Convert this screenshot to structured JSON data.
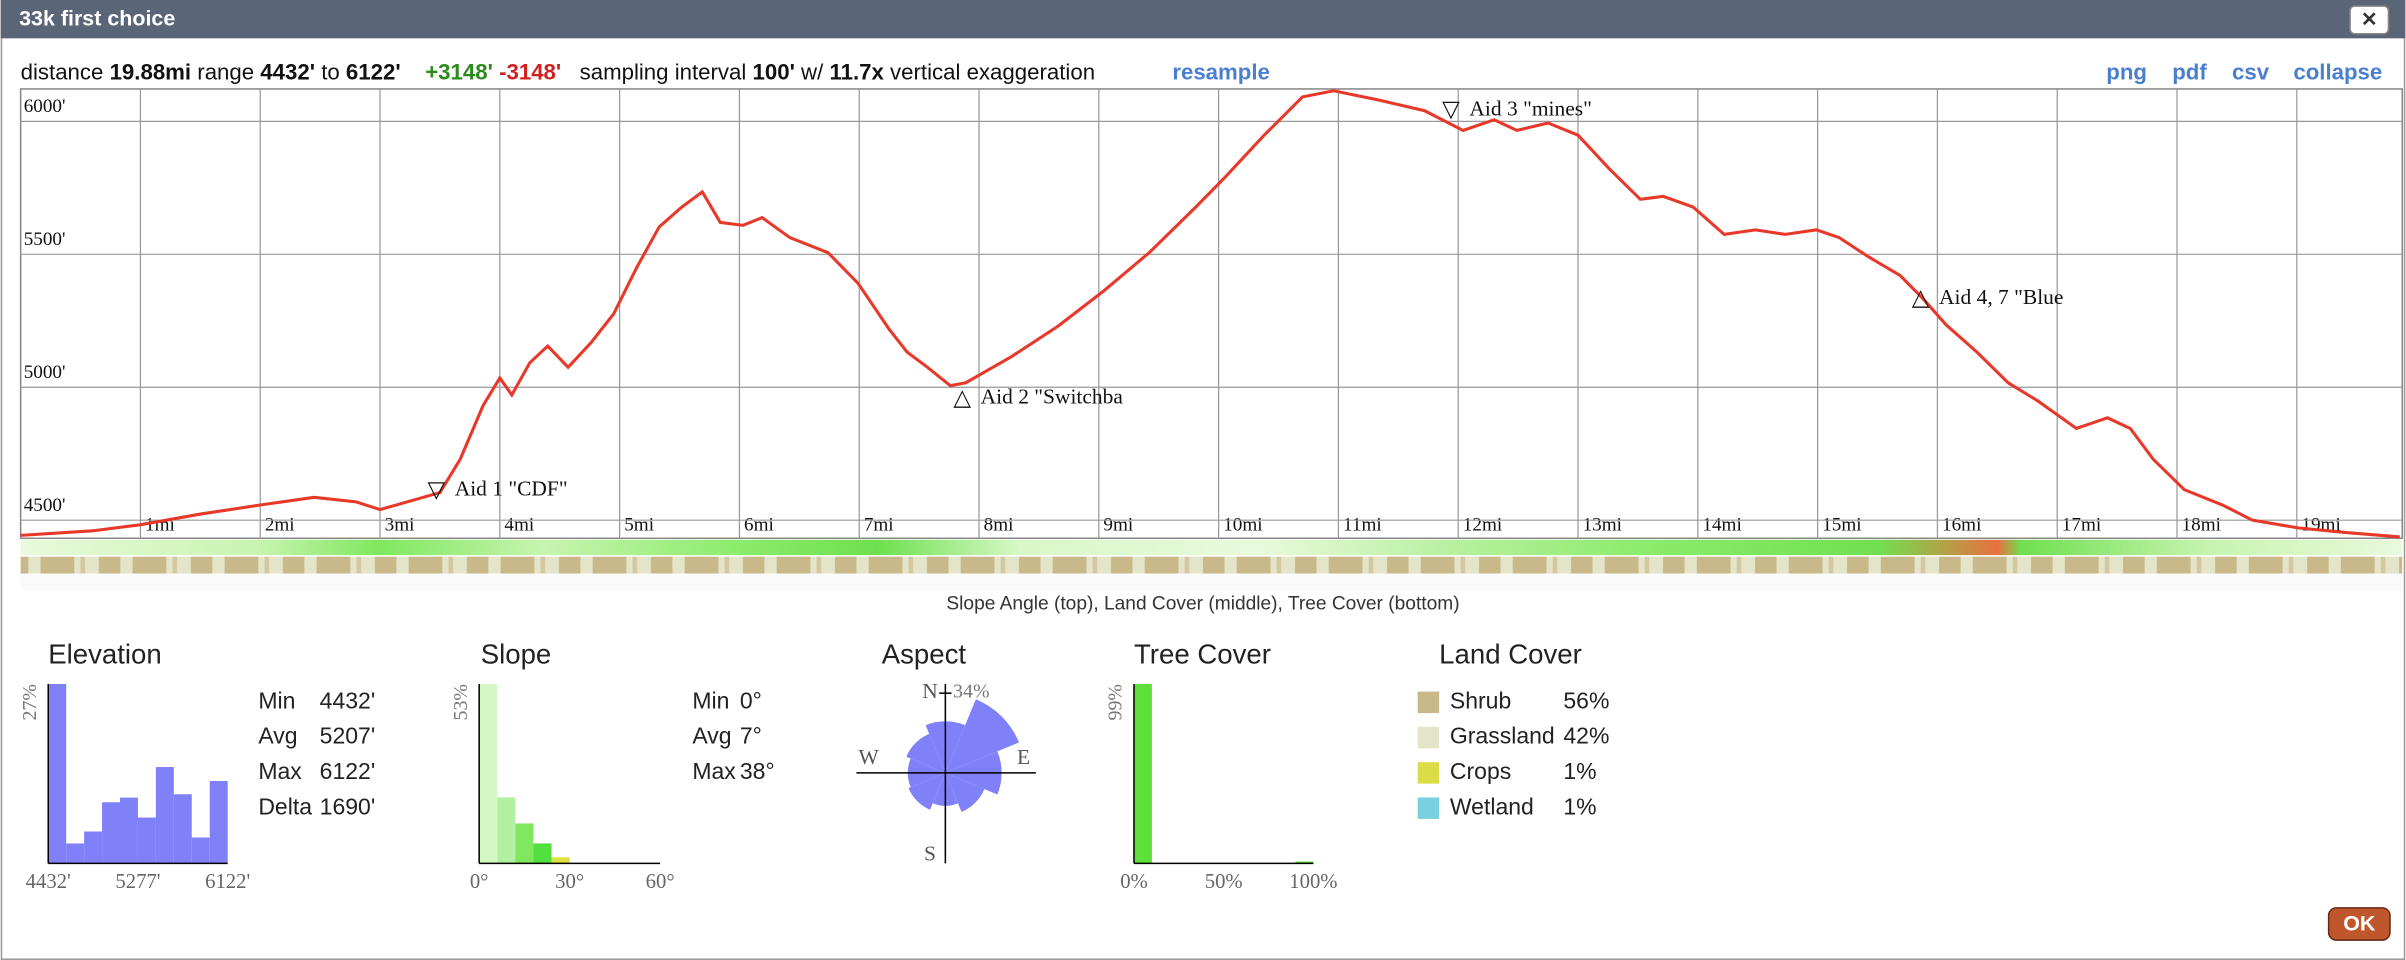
{
  "window": {
    "title": "33k first choice",
    "close": "✕"
  },
  "summary": {
    "distance_label": "distance",
    "distance": "19.88mi",
    "range_label": "range",
    "range_min": "4432'",
    "to": "to",
    "range_max": "6122'",
    "gain": "+3148'",
    "loss": "-3148'",
    "interval_label": "sampling interval",
    "interval": "100'",
    "with": "w/",
    "exaggeration": "11.7x",
    "exaggeration_label": "vertical exaggeration"
  },
  "links": {
    "resample": "resample",
    "png": "png",
    "pdf": "pdf",
    "csv": "csv",
    "collapse": "collapse"
  },
  "chart_data": {
    "type": "line",
    "x": [
      0,
      0.6,
      1,
      1.5,
      2,
      2.45,
      2.8,
      3,
      3.5,
      3.67,
      3.86,
      4,
      4.1,
      4.25,
      4.4,
      4.57,
      4.76,
      4.95,
      5.14,
      5.33,
      5.52,
      5.69,
      5.84,
      6.03,
      6.19,
      6.42,
      6.74,
      6.99,
      7.25,
      7.4,
      7.57,
      7.76,
      7.89,
      8.27,
      8.66,
      9.04,
      9.42,
      9.81,
      10.06,
      10.38,
      10.7,
      10.96,
      11.34,
      11.72,
      12.04,
      12.3,
      12.49,
      12.75,
      13.0,
      13.26,
      13.52,
      13.71,
      13.96,
      14.22,
      14.48,
      14.73,
      14.99,
      15.18,
      15.43,
      15.69,
      15.88,
      16.07,
      16.33,
      16.59,
      16.84,
      17.16,
      17.42,
      17.61,
      17.8,
      18.06,
      18.38,
      18.63,
      19.01,
      19.4,
      19.86
    ],
    "values": [
      4443,
      4460,
      4483,
      4523,
      4557,
      4586,
      4569,
      4540,
      4604,
      4730,
      4931,
      5035,
      4971,
      5092,
      5155,
      5075,
      5167,
      5276,
      5448,
      5603,
      5678,
      5735,
      5620,
      5609,
      5638,
      5563,
      5506,
      5391,
      5218,
      5132,
      5075,
      5006,
      5017,
      5115,
      5230,
      5362,
      5506,
      5678,
      5793,
      5948,
      6092,
      6115,
      6080,
      6040,
      5966,
      6006,
      5966,
      5994,
      5948,
      5822,
      5707,
      5718,
      5678,
      5575,
      5592,
      5575,
      5592,
      5563,
      5489,
      5420,
      5333,
      5236,
      5132,
      5017,
      4948,
      4845,
      4885,
      4845,
      4730,
      4615,
      4557,
      4500,
      4471,
      4454,
      4437
    ],
    "color": "#e8382a",
    "xlim": [
      0,
      19.88
    ],
    "ylim": [
      4432,
      6122
    ],
    "xticks": [
      {
        "value": 1,
        "label": "1mi"
      },
      {
        "value": 2,
        "label": "2mi"
      },
      {
        "value": 3,
        "label": "3mi"
      },
      {
        "value": 4,
        "label": "4mi"
      },
      {
        "value": 5,
        "label": "5mi"
      },
      {
        "value": 6,
        "label": "6mi"
      },
      {
        "value": 7,
        "label": "7mi"
      },
      {
        "value": 8,
        "label": "8mi"
      },
      {
        "value": 9,
        "label": "9mi"
      },
      {
        "value": 10,
        "label": "10mi"
      },
      {
        "value": 11,
        "label": "11mi"
      },
      {
        "value": 12,
        "label": "12mi"
      },
      {
        "value": 13,
        "label": "13mi"
      },
      {
        "value": 14,
        "label": "14mi"
      },
      {
        "value": 15,
        "label": "15mi"
      },
      {
        "value": 16,
        "label": "16mi"
      },
      {
        "value": 17,
        "label": "17mi"
      },
      {
        "value": 18,
        "label": "18mi"
      },
      {
        "value": 19,
        "label": "19mi"
      }
    ],
    "yticks": [
      {
        "value": 4500,
        "label": "4500'"
      },
      {
        "value": 5000,
        "label": "5000'"
      },
      {
        "value": 5500,
        "label": "5500'"
      },
      {
        "value": 6000,
        "label": "6000'"
      }
    ],
    "grid": true,
    "annotations": [
      {
        "symbol": "▽",
        "text": "Aid 1 \"CDF\"",
        "x": 3.47,
        "y": 4611
      },
      {
        "symbol": "△",
        "text": "Aid 2 \"Switchba",
        "x": 7.86,
        "y": 4957
      },
      {
        "symbol": "▽",
        "text": "Aid 3 \"mines\"",
        "x": 11.94,
        "y": 6041
      },
      {
        "symbol": "△",
        "text": "Aid 4, 7 \"Blue",
        "x": 15.86,
        "y": 5332
      }
    ]
  },
  "strip_caption": "Slope Angle (top), Land Cover (middle), Tree Cover (bottom)",
  "stats": {
    "elevation": {
      "title": "Elevation",
      "histogram": {
        "values": [
          27,
          3,
          4.8,
          9.2,
          9.9,
          6.9,
          14.5,
          10.4,
          3.9,
          12.4
        ],
        "color": "#8080f8",
        "ymax": {
          "value": 27,
          "label": "27%"
        },
        "xlabels": [
          "4432'",
          "5277'",
          "6122'"
        ]
      },
      "rows": [
        [
          "Min",
          "4432'"
        ],
        [
          "Avg",
          "5207'"
        ],
        [
          "Max",
          "6122'"
        ],
        [
          "Delta",
          "1690'"
        ]
      ]
    },
    "slope": {
      "title": "Slope",
      "histogram": {
        "values": [
          53,
          19.5,
          11.8,
          5.9,
          1.8,
          0,
          0,
          0,
          0,
          0
        ],
        "colors": [
          "#d4f7c4",
          "#b0f0a0",
          "#7fe85e",
          "#50e040",
          "#e0e040",
          "#e0c040",
          "#e0a040",
          "#e07040",
          "#e04040",
          "#c02020"
        ],
        "ymax": {
          "value": 53,
          "label": "53%"
        },
        "xlabels": [
          "0°",
          "30°",
          "60°"
        ]
      },
      "rows": [
        [
          "Min",
          "0°"
        ],
        [
          "Avg",
          "7°"
        ],
        [
          "Max",
          "38°"
        ]
      ]
    },
    "aspect": {
      "title": "Aspect",
      "directions": [
        "N",
        "E",
        "S",
        "W"
      ],
      "max": {
        "value": 34,
        "label": "34%"
      },
      "values": [
        22,
        34,
        24,
        18,
        14,
        17,
        16,
        18
      ],
      "color": "#8080f8"
    },
    "tree_cover": {
      "title": "Tree Cover",
      "histogram": {
        "values": [
          99,
          0,
          0,
          0,
          0,
          0,
          0,
          0,
          0,
          1
        ],
        "color": "#5ee03a",
        "ymax": {
          "value": 99,
          "label": "99%"
        },
        "xlabels": [
          "0%",
          "50%",
          "100%"
        ]
      }
    },
    "land_cover": {
      "title": "Land Cover",
      "items": [
        {
          "name": "Shrub",
          "value": 56,
          "label": "56%",
          "color": "#c8b88a"
        },
        {
          "name": "Grassland",
          "value": 42,
          "label": "42%",
          "color": "#e4e4c8"
        },
        {
          "name": "Crops",
          "value": 1,
          "label": "1%",
          "color": "#dcdc48"
        },
        {
          "name": "Wetland",
          "value": 1,
          "label": "1%",
          "color": "#78d0e0"
        }
      ]
    }
  },
  "ok": "OK"
}
